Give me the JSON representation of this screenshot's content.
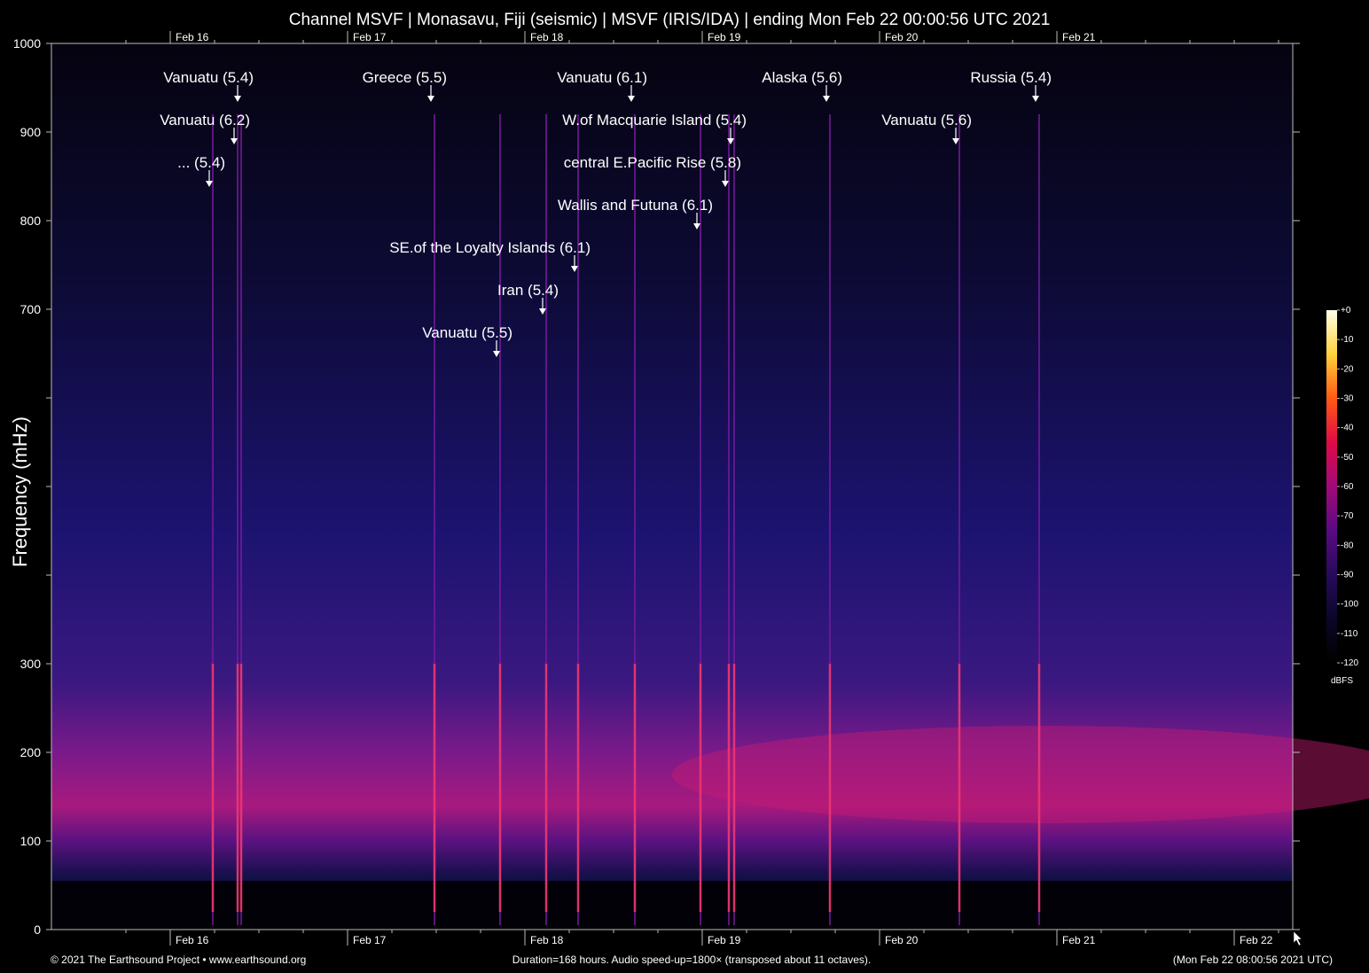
{
  "chart_data": {
    "type": "heatmap",
    "title": "Channel MSVF | Monasavu, Fiji (seismic) | MSVF (IRIS/IDA) | ending Mon Feb 22 00:00:56 UTC 2021",
    "ylabel": "Frequency (mHz)",
    "xlabel": "",
    "ylim": [
      0,
      1000
    ],
    "y_ticks": [
      0,
      100,
      200,
      300,
      400,
      500,
      600,
      700,
      800,
      900,
      1000
    ],
    "y_tick_labels": [
      "0",
      "100",
      "200",
      "300",
      "",
      "",
      "",
      "700",
      "800",
      "900",
      "1000"
    ],
    "x_range_days": [
      0,
      7
    ],
    "x_date_ticks": [
      {
        "day": 0.67,
        "label": "Feb 16"
      },
      {
        "day": 1.67,
        "label": "Feb 17"
      },
      {
        "day": 2.67,
        "label": "Feb 18"
      },
      {
        "day": 3.67,
        "label": "Feb 19"
      },
      {
        "day": 4.67,
        "label": "Feb 20"
      },
      {
        "day": 5.67,
        "label": "Feb 21"
      },
      {
        "day": 6.67,
        "label": "Feb 22"
      }
    ],
    "events": [
      {
        "label": "Vanuatu (5.4)",
        "day": 1.05,
        "level": 0
      },
      {
        "label": "Vanuatu (6.2)",
        "day": 1.03,
        "level": 1
      },
      {
        "label": "... (5.4)",
        "day": 0.89,
        "level": 2
      },
      {
        "label": "Greece (5.5)",
        "day": 2.14,
        "level": 0
      },
      {
        "label": "Vanuatu (6.1)",
        "day": 3.27,
        "level": 0
      },
      {
        "label": "W.of Macquarie Island (5.4)",
        "day": 3.83,
        "level": 1
      },
      {
        "label": "central E.Pacific Rise (5.8)",
        "day": 3.8,
        "level": 2
      },
      {
        "label": "Wallis and Futuna (6.1)",
        "day": 3.64,
        "level": 3
      },
      {
        "label": "SE.of the Loyalty Islands (6.1)",
        "day": 2.95,
        "level": 4
      },
      {
        "label": "Iran (5.4)",
        "day": 2.77,
        "level": 5
      },
      {
        "label": "Vanuatu (5.5)",
        "day": 2.51,
        "level": 6
      },
      {
        "label": "Alaska (5.6)",
        "day": 4.37,
        "level": 0
      },
      {
        "label": "Vanuatu (5.6)",
        "day": 5.1,
        "level": 1
      },
      {
        "label": "Russia (5.4)",
        "day": 5.55,
        "level": 0
      }
    ],
    "colorbar": {
      "unit": "dBFS",
      "ticks": [
        "+0",
        "-10",
        "-20",
        "-30",
        "-40",
        "-50",
        "-60",
        "-70",
        "-80",
        "-90",
        "-100",
        "-110",
        "-120"
      ],
      "stops": [
        "#ffffe8",
        "#ffd23c",
        "#ff5a14",
        "#e00a46",
        "#a00a78",
        "#5a0a82",
        "#280a5a",
        "#0a0628",
        "#000000"
      ]
    }
  },
  "footer": {
    "copyright": "© 2021 The Earthsound Project • www.earthsound.org",
    "duration": "Duration=168 hours. Audio speed-up=1800× (transposed about 11 octaves).",
    "timestamp": "(Mon Feb 22 08:00:56 2021 UTC)"
  }
}
